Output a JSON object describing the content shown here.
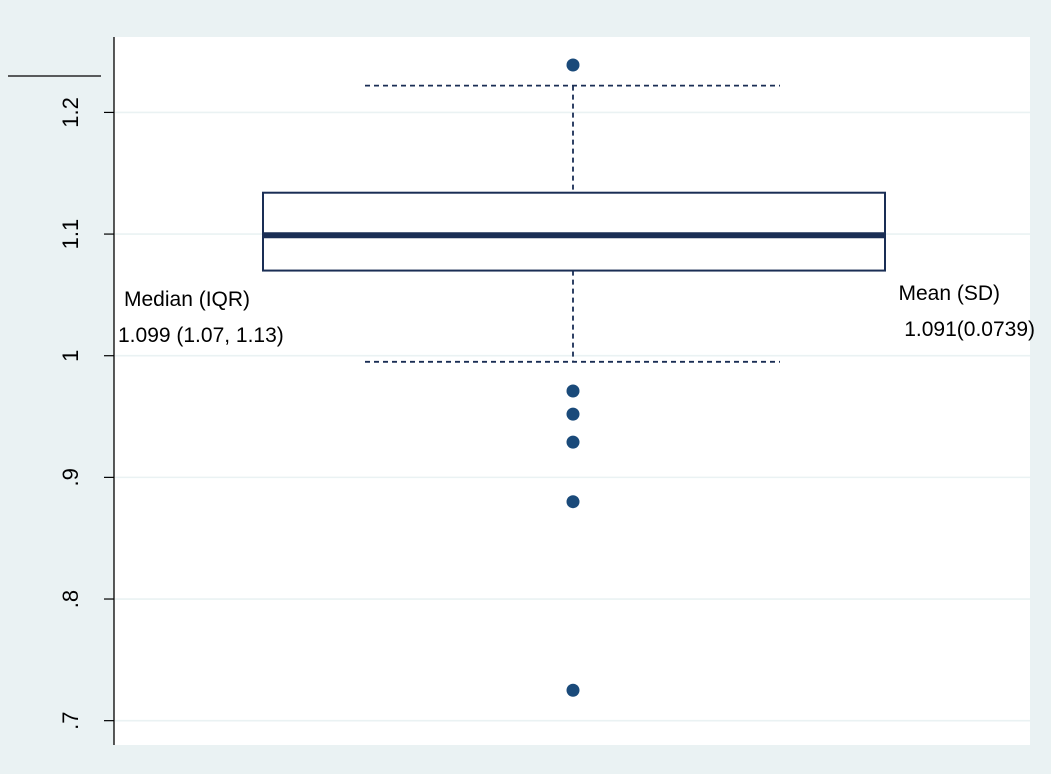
{
  "chart_data": {
    "type": "box",
    "orientation": "vertical",
    "ylim": [
      0.68,
      1.262
    ],
    "yticks": [
      0.7,
      0.8,
      0.9,
      1.0,
      1.1,
      1.2
    ],
    "ytick_labels": [
      ".7",
      ".8",
      ".9",
      "1",
      "1.1",
      "1.2"
    ],
    "grid": true,
    "box": {
      "q1": 1.07,
      "median": 1.099,
      "q3": 1.134,
      "whisker_low": 0.995,
      "whisker_high": 1.222
    },
    "outliers": [
      1.239,
      0.971,
      0.952,
      0.929,
      0.88,
      0.725
    ],
    "annotations": {
      "left_title": "Median (IQR)",
      "left_value": "1.099 (1.07, 1.13)",
      "right_title": "Mean (SD)",
      "right_value": "1.091(0.0739)"
    },
    "colors": {
      "background": "#eaf2f3",
      "plot_area": "#ffffff",
      "grid": "#eaf2f3",
      "box_stroke": "#1a2e55",
      "median": "#1a2e55",
      "whisker": "#1a2e55",
      "outlier": "#1a4a7a"
    }
  }
}
